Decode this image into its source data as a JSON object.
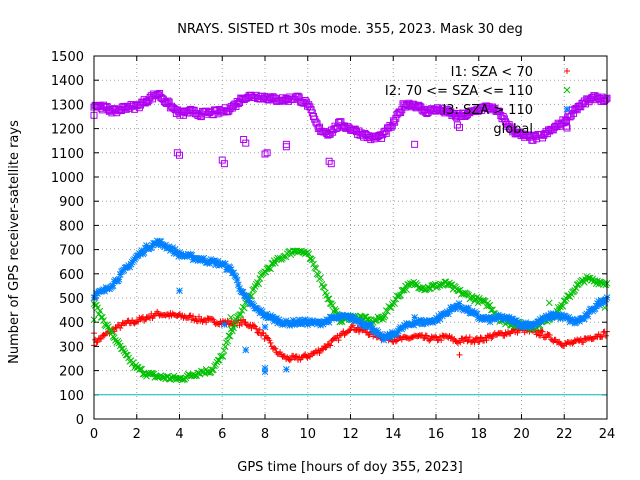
{
  "chart_data": {
    "type": "scatter",
    "title": "NRAYS. SISTED rt 30s mode. 355, 2023. Mask 30 deg",
    "xlabel": "GPS time [hours of doy 355, 2023]",
    "ylabel": "Number of GPS receiver-satellite rays",
    "xlim": [
      0,
      24
    ],
    "ylim": [
      0,
      1500
    ],
    "x_ticks": [
      "0",
      "2",
      "4",
      "6",
      "8",
      "10",
      "12",
      "14",
      "16",
      "18",
      "20",
      "22",
      "24"
    ],
    "y_ticks": [
      "0",
      "100",
      "200",
      "300",
      "400",
      "500",
      "600",
      "700",
      "800",
      "900",
      "1000",
      "1100",
      "1200",
      "1300",
      "1400",
      "1500"
    ],
    "grid": true,
    "legend_position": "top-right",
    "reference_line": {
      "y": 100,
      "color": "#00c0c0"
    },
    "series": [
      {
        "name": "I1: SZA < 70",
        "marker": "+",
        "color": "#ff0000",
        "curve": {
          "x": [
            0,
            0.5,
            1,
            1.5,
            2,
            2.5,
            3,
            3.5,
            4,
            4.5,
            5,
            5.5,
            6,
            6.5,
            7,
            7.5,
            8,
            8.5,
            9,
            9.5,
            10,
            10.5,
            11,
            11.5,
            12,
            12.5,
            13,
            13.5,
            14,
            14.5,
            15,
            15.5,
            16,
            16.5,
            17,
            17.5,
            18,
            18.5,
            19,
            19.5,
            20,
            20.5,
            21,
            21.5,
            22,
            22.5,
            23,
            23.5,
            24
          ],
          "y": [
            315,
            345,
            375,
            395,
            405,
            420,
            435,
            430,
            425,
            420,
            410,
            405,
            400,
            395,
            400,
            380,
            340,
            280,
            250,
            250,
            260,
            280,
            310,
            340,
            380,
            370,
            350,
            340,
            330,
            330,
            340,
            335,
            330,
            340,
            320,
            330,
            325,
            340,
            350,
            360,
            370,
            360,
            350,
            330,
            310,
            315,
            330,
            345,
            355
          ]
        },
        "outliers": [
          {
            "x": 0,
            "y": 355
          },
          {
            "x": 12.4,
            "y": 360
          },
          {
            "x": 17.1,
            "y": 265
          },
          {
            "x": 20.9,
            "y": 365
          },
          {
            "x": 23.7,
            "y": 340
          }
        ]
      },
      {
        "name": "I2: 70 <= SZA <= 110",
        "marker": "x",
        "color": "#00c000",
        "curve": {
          "x": [
            0,
            0.5,
            1,
            1.5,
            2,
            2.5,
            3,
            3.5,
            4,
            4.5,
            5,
            5.5,
            6,
            6.5,
            7,
            7.5,
            8,
            8.5,
            9,
            9.5,
            10,
            10.5,
            11,
            11.5,
            12,
            12.5,
            13,
            13.5,
            14,
            14.5,
            15,
            15.5,
            16,
            16.5,
            17,
            17.5,
            18,
            18.5,
            19,
            19.5,
            20,
            20.5,
            21,
            21.5,
            22,
            22.5,
            23,
            23.5,
            24
          ],
          "y": [
            480,
            400,
            330,
            260,
            210,
            185,
            175,
            170,
            165,
            180,
            195,
            200,
            260,
            380,
            460,
            540,
            610,
            650,
            680,
            700,
            680,
            600,
            490,
            410,
            420,
            420,
            400,
            420,
            480,
            540,
            560,
            540,
            550,
            560,
            530,
            510,
            490,
            470,
            410,
            395,
            390,
            380,
            400,
            430,
            480,
            540,
            580,
            570,
            560
          ]
        },
        "outliers": [
          {
            "x": 0,
            "y": 410
          },
          {
            "x": 6.4,
            "y": 420
          },
          {
            "x": 21.3,
            "y": 480
          },
          {
            "x": 23.9,
            "y": 460
          }
        ]
      },
      {
        "name": "I3: SZA > 110",
        "marker": "*",
        "color": "#0080ff",
        "curve": {
          "x": [
            0,
            0.5,
            1,
            1.5,
            2,
            2.5,
            3,
            3.5,
            4,
            4.5,
            5,
            5.5,
            6,
            6.5,
            7,
            7.5,
            8,
            8.5,
            9,
            9.5,
            10,
            10.5,
            11,
            11.5,
            12,
            12.5,
            13,
            13.5,
            14,
            14.5,
            15,
            15.5,
            16,
            16.5,
            17,
            17.5,
            18,
            18.5,
            19,
            19.5,
            20,
            20.5,
            21,
            21.5,
            22,
            22.5,
            23,
            23.5,
            24
          ],
          "y": [
            510,
            530,
            570,
            620,
            670,
            710,
            730,
            710,
            680,
            670,
            660,
            650,
            640,
            610,
            510,
            460,
            430,
            410,
            395,
            400,
            400,
            395,
            410,
            420,
            420,
            400,
            380,
            330,
            350,
            380,
            400,
            400,
            410,
            440,
            470,
            450,
            420,
            410,
            420,
            410,
            390,
            390,
            410,
            430,
            420,
            400,
            420,
            470,
            500
          ]
        },
        "outliers": [
          {
            "x": 4,
            "y": 530
          },
          {
            "x": 6.1,
            "y": 390
          },
          {
            "x": 7.1,
            "y": 285
          },
          {
            "x": 8.0,
            "y": 210
          },
          {
            "x": 8.0,
            "y": 195
          },
          {
            "x": 8.0,
            "y": 380
          },
          {
            "x": 9.0,
            "y": 205
          },
          {
            "x": 15.0,
            "y": 420
          }
        ]
      },
      {
        "name": "global",
        "marker": "open-square",
        "color": "#b000f0",
        "curve": {
          "x": [
            0,
            0.5,
            1,
            1.5,
            2,
            2.5,
            3,
            3.5,
            4,
            4.5,
            5,
            5.5,
            6,
            6.5,
            7,
            7.5,
            8,
            8.5,
            9,
            9.5,
            10,
            10.5,
            11,
            11.5,
            12,
            12.5,
            13,
            13.5,
            14,
            14.5,
            15,
            15.5,
            16,
            16.5,
            17,
            17.5,
            18,
            18.5,
            19,
            19.5,
            20,
            20.5,
            21,
            21.5,
            22,
            22.5,
            23,
            23.5,
            24
          ],
          "y": [
            1300,
            1285,
            1270,
            1290,
            1290,
            1320,
            1345,
            1300,
            1260,
            1270,
            1260,
            1265,
            1270,
            1290,
            1330,
            1335,
            1330,
            1320,
            1320,
            1330,
            1300,
            1200,
            1180,
            1220,
            1200,
            1180,
            1160,
            1170,
            1220,
            1300,
            1300,
            1270,
            1280,
            1270,
            1250,
            1260,
            1280,
            1290,
            1260,
            1200,
            1170,
            1160,
            1170,
            1200,
            1230,
            1280,
            1310,
            1330,
            1315
          ]
        },
        "outliers": [
          {
            "x": 0,
            "y": 1255
          },
          {
            "x": 3.9,
            "y": 1100
          },
          {
            "x": 4,
            "y": 1090
          },
          {
            "x": 6,
            "y": 1070
          },
          {
            "x": 6.1,
            "y": 1055
          },
          {
            "x": 7,
            "y": 1155
          },
          {
            "x": 7.1,
            "y": 1140
          },
          {
            "x": 8,
            "y": 1095
          },
          {
            "x": 8.1,
            "y": 1100
          },
          {
            "x": 9,
            "y": 1135
          },
          {
            "x": 9,
            "y": 1125
          },
          {
            "x": 11,
            "y": 1065
          },
          {
            "x": 11.1,
            "y": 1055
          },
          {
            "x": 15,
            "y": 1135
          },
          {
            "x": 17,
            "y": 1215
          },
          {
            "x": 17.1,
            "y": 1205
          },
          {
            "x": 22.1,
            "y": 1210
          }
        ]
      }
    ]
  }
}
